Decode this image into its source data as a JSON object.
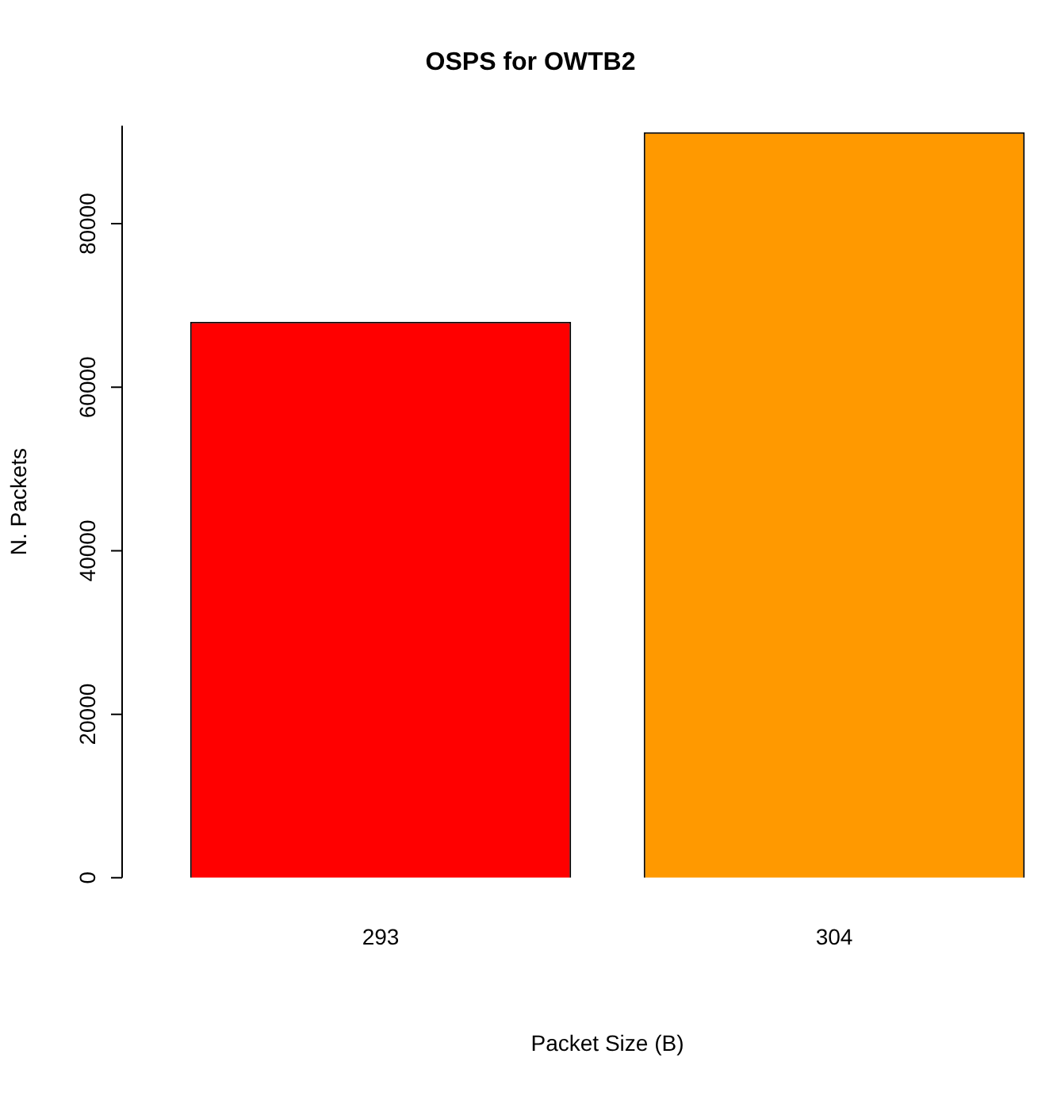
{
  "chart_data": {
    "type": "bar",
    "title": "OSPS for OWTB2",
    "xlabel": "Packet Size (B)",
    "ylabel": "N. Packets",
    "categories": [
      "293",
      "304"
    ],
    "values": [
      68000,
      91200
    ],
    "colors": [
      "#ff0000",
      "#ff9900"
    ],
    "ylim": [
      0,
      92000
    ],
    "yticks": [
      0,
      20000,
      40000,
      60000,
      80000
    ],
    "grid": false,
    "legend": false
  }
}
